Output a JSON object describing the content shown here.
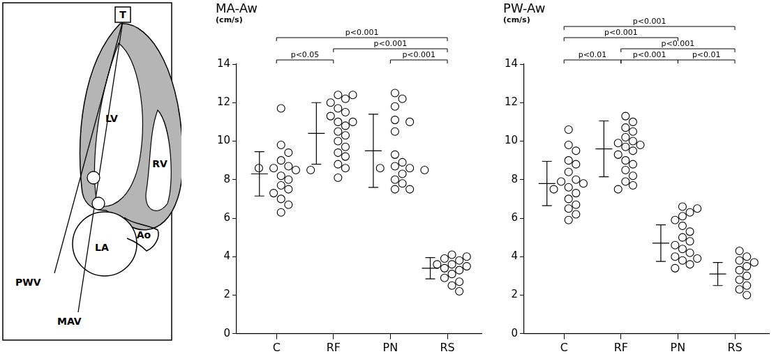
{
  "diagram": {
    "labels": [
      {
        "text": "T"
      },
      {
        "text": "LV"
      },
      {
        "text": "RV"
      },
      {
        "text": "LA"
      },
      {
        "text": "Ao"
      },
      {
        "text": "PWV"
      },
      {
        "text": "MAV"
      }
    ]
  },
  "chart_data": [
    {
      "type": "scatter",
      "title": "MA-Aw",
      "y_label": "(cm/s)",
      "categories": [
        "C",
        "RF",
        "PN",
        "RS"
      ],
      "groups": [
        {
          "values": [
            11.7,
            9.8,
            9.4,
            9.0,
            8.7,
            8.6,
            8.5,
            8.6,
            8.5,
            8.2,
            8.0,
            7.7,
            7.5,
            7.3,
            7.0,
            6.7,
            6.3
          ],
          "mean": 8.3,
          "sd": 1.15
        },
        {
          "values": [
            12.4,
            12.4,
            12.2,
            12.0,
            11.7,
            11.5,
            11.3,
            11.0,
            11.0,
            10.8,
            10.5,
            10.3,
            10.0,
            9.7,
            9.4,
            9.2,
            8.8,
            8.6,
            8.1
          ],
          "mean": 10.4,
          "sd": 1.6
        },
        {
          "values": [
            12.5,
            12.2,
            11.8,
            11.1,
            11.0,
            10.5,
            9.3,
            8.9,
            8.7,
            8.6,
            8.6,
            8.5,
            8.3,
            8.0,
            7.8,
            7.5,
            7.5
          ],
          "mean": 9.5,
          "sd": 1.9
        },
        {
          "values": [
            4.1,
            4.0,
            3.9,
            3.8,
            3.6,
            3.6,
            3.5,
            3.4,
            3.3,
            3.1,
            2.9,
            2.7,
            2.5,
            2.2
          ],
          "mean": 3.4,
          "sd": 0.55
        }
      ],
      "ylim": [
        0,
        14
      ],
      "yticks": [
        0,
        2,
        4,
        6,
        8,
        10,
        12,
        14
      ],
      "grid": false,
      "marker": "circle",
      "color": "#000000",
      "comparisons": [
        {
          "from": "C",
          "to": "RS",
          "label": "p<0.001"
        },
        {
          "from": "RF",
          "to": "RS",
          "label": "p<0.001"
        },
        {
          "from": "C",
          "to": "RF",
          "label": "p<0.05"
        },
        {
          "from": "PN",
          "to": "RS",
          "label": "p<0.001"
        }
      ]
    },
    {
      "type": "scatter",
      "title": "PW-Aw",
      "y_label": "(cm/s)",
      "categories": [
        "C",
        "RF",
        "PN",
        "RS"
      ],
      "groups": [
        {
          "values": [
            10.6,
            9.8,
            9.5,
            9.0,
            8.8,
            8.4,
            8.0,
            7.9,
            7.8,
            7.6,
            7.5,
            7.3,
            7.0,
            6.7,
            6.5,
            6.2,
            5.9
          ],
          "mean": 7.8,
          "sd": 1.15
        },
        {
          "values": [
            11.3,
            11.0,
            10.7,
            10.5,
            10.2,
            10.0,
            9.9,
            9.8,
            9.7,
            9.5,
            9.3,
            9.0,
            8.8,
            8.5,
            8.2,
            7.9,
            7.7,
            7.5
          ],
          "mean": 9.6,
          "sd": 1.45
        },
        {
          "values": [
            6.6,
            6.5,
            6.3,
            6.1,
            5.9,
            5.6,
            5.3,
            5.0,
            4.8,
            4.6,
            4.4,
            4.2,
            4.0,
            3.9,
            3.8,
            3.6,
            3.4
          ],
          "mean": 4.7,
          "sd": 0.95
        },
        {
          "values": [
            4.3,
            4.0,
            3.8,
            3.7,
            3.5,
            3.3,
            3.0,
            2.8,
            2.5,
            2.3,
            2.0
          ],
          "mean": 3.1,
          "sd": 0.6
        }
      ],
      "ylim": [
        0,
        14
      ],
      "yticks": [
        0,
        2,
        4,
        6,
        8,
        10,
        12,
        14
      ],
      "grid": false,
      "marker": "circle",
      "color": "#000000",
      "comparisons": [
        {
          "from": "C",
          "to": "RS",
          "label": "p<0.001"
        },
        {
          "from": "RF",
          "to": "RS",
          "label": "p<0.001"
        },
        {
          "from": "C",
          "to": "PN",
          "label": "p<0.001"
        },
        {
          "from": "C",
          "to": "RF",
          "label": "p<0.01"
        },
        {
          "from": "RF",
          "to": "PN",
          "label": "p<0.001"
        },
        {
          "from": "PN",
          "to": "RS",
          "label": "p<0.01"
        }
      ]
    }
  ]
}
